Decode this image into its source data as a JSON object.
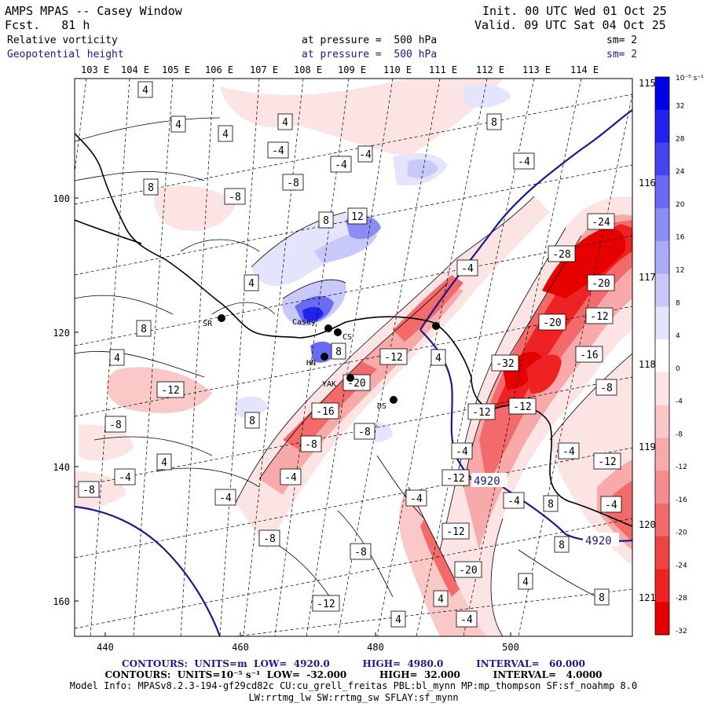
{
  "header": {
    "title": "AMPS MPAS -- Casey Window",
    "init": "Init. 00 UTC Wed 01 Oct 25",
    "fcst": "Fcst.   81 h",
    "valid": "Valid. 09 UTC Sat 04 Oct 25",
    "field1": "Relative vorticity",
    "pressure1": "at pressure =  500 hPa",
    "sm1": "sm= 2",
    "field2": "Geopotential height",
    "pressure2": "at pressure =  500 hPa",
    "sm2": "sm= 2"
  },
  "map": {
    "lon_labels_top": [
      "103 E",
      "104 E",
      "105 E",
      "106 E",
      "107 E",
      "108 E",
      "109 E",
      "110 E",
      "111 E",
      "112 E",
      "113 E",
      "114 E"
    ],
    "lat_labels_right": [
      "115 E",
      "116 E",
      "117 E",
      "118 E",
      "119 E",
      "120 E",
      "121 E"
    ],
    "y_axis_ticks": [
      "100",
      "120",
      "140",
      "160"
    ],
    "x_axis_ticks": [
      "440",
      "460",
      "480",
      "500"
    ],
    "stations": [
      {
        "name": "SR"
      },
      {
        "name": "Casey"
      },
      {
        "name": "CS"
      },
      {
        "name": "HN"
      },
      {
        "name": "YAK"
      },
      {
        "name": "DS"
      }
    ],
    "contour_labels": [
      "4",
      "4",
      "4",
      "4",
      "-4",
      "-4",
      "8",
      "-8",
      "-4",
      "8",
      "12",
      "-8",
      "8",
      "-4",
      "-4",
      "-24",
      "-28",
      "-20",
      "-12",
      "4",
      "-20",
      "-16",
      "-12",
      "8",
      "4",
      "-12",
      "4",
      "-20",
      "-16",
      "-8",
      "-12",
      "-32",
      "-8",
      "-12",
      "-8",
      "-4",
      "-12",
      "4",
      "8",
      "-4",
      "-8",
      "-4",
      "-4",
      "-12",
      "-8",
      "-4",
      "-4",
      "-4",
      "8",
      "-4",
      "-8",
      "-20",
      "-12",
      "8",
      "-8",
      "4",
      "8",
      "4",
      "4",
      "-4",
      "8",
      "-12"
    ],
    "height_labels": [
      "4920",
      "4920"
    ]
  },
  "colorbar": {
    "unit": "10⁻⁵ s⁻¹",
    "ticks": [
      "32",
      "28",
      "24",
      "20",
      "16",
      "12",
      "8",
      "4",
      "0",
      "-4",
      "-8",
      "-12",
      "-16",
      "-20",
      "-24",
      "-28",
      "-32"
    ],
    "colors": [
      "#0000e6",
      "#2222ee",
      "#4444f0",
      "#6a6af3",
      "#8c8cf5",
      "#aaaaf8",
      "#c8c8fb",
      "#e4e4fd",
      "#ffffff",
      "#fde4e4",
      "#fbc8c8",
      "#f8aaaa",
      "#f58c8c",
      "#f36a6a",
      "#f04444",
      "#ee2222",
      "#e60000"
    ]
  },
  "footer": {
    "contours1": "CONTOURS:  UNITS=m  LOW=  4920.0          HIGH=  4980.0          INTERVAL=   60.000",
    "contours2": "CONTOURS:  UNITS=10⁻⁵ s⁻¹  LOW=  -32.000          HIGH=  32.000          INTERVAL=   4.0000",
    "model_info": "Model Info: MPASv8.2.3-194-gf29cd82c CU:cu_grell_freitas PBL:bl_mynn MP:mp_thompson SF:sf_noahmp 8.0",
    "model_info2": "LW:rrtmg_lw SW:rrtmg_sw SFLAY:sf_mynn"
  }
}
